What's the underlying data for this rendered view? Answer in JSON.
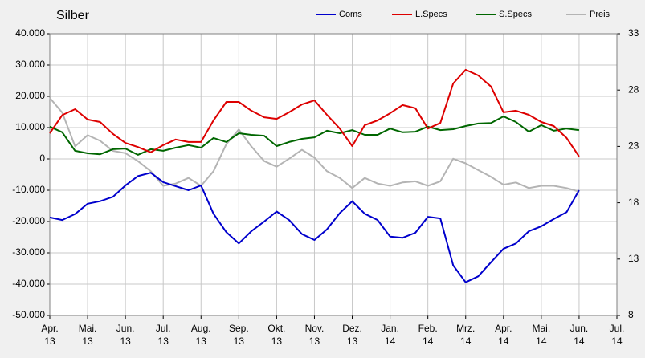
{
  "chart_data": {
    "type": "line",
    "title": "Silber",
    "x": [
      0,
      0.33,
      0.67,
      1,
      1.33,
      1.67,
      2,
      2.33,
      2.67,
      3,
      3.33,
      3.67,
      4,
      4.33,
      4.67,
      5,
      5.33,
      5.67,
      6,
      6.33,
      6.67,
      7,
      7.33,
      7.67,
      8,
      8.33,
      8.67,
      9,
      9.33,
      9.67,
      10,
      10.33,
      10.67,
      11,
      11.33,
      11.67,
      12,
      12.33,
      12.67,
      13,
      13.33,
      13.67,
      14
    ],
    "xlim": [
      0,
      15
    ],
    "xticks": [
      {
        "value": 0,
        "label": "Apr.",
        "sublabel": "13"
      },
      {
        "value": 1,
        "label": "Mai.",
        "sublabel": "13"
      },
      {
        "value": 2,
        "label": "Jun.",
        "sublabel": "13"
      },
      {
        "value": 3,
        "label": "Jul.",
        "sublabel": "13"
      },
      {
        "value": 4,
        "label": "Aug.",
        "sublabel": "13"
      },
      {
        "value": 5,
        "label": "Sep.",
        "sublabel": "13"
      },
      {
        "value": 6,
        "label": "Okt.",
        "sublabel": "13"
      },
      {
        "value": 7,
        "label": "Nov.",
        "sublabel": "13"
      },
      {
        "value": 8,
        "label": "Dez.",
        "sublabel": "13"
      },
      {
        "value": 9,
        "label": "Jan.",
        "sublabel": "14"
      },
      {
        "value": 10,
        "label": "Feb.",
        "sublabel": "14"
      },
      {
        "value": 11,
        "label": "Mrz.",
        "sublabel": "14"
      },
      {
        "value": 12,
        "label": "Apr.",
        "sublabel": "14"
      },
      {
        "value": 13,
        "label": "Mai.",
        "sublabel": "14"
      },
      {
        "value": 14,
        "label": "Jun.",
        "sublabel": "14"
      },
      {
        "value": 15,
        "label": "Jul.",
        "sublabel": "14"
      }
    ],
    "ylim": [
      -50000,
      40000
    ],
    "yticks": [
      {
        "value": 40000,
        "label": "40.000"
      },
      {
        "value": 30000,
        "label": "30.000"
      },
      {
        "value": 20000,
        "label": "20.000"
      },
      {
        "value": 10000,
        "label": "10.000"
      },
      0,
      {
        "value": -10000,
        "label": "-10.000"
      },
      {
        "value": -20000,
        "label": "-20.000"
      },
      {
        "value": -30000,
        "label": "-30.000"
      },
      {
        "value": -40000,
        "label": "-40.000"
      },
      {
        "value": -50000,
        "label": "-50.000"
      }
    ],
    "y2lim": [
      8,
      33
    ],
    "y2ticks": [
      33,
      28,
      23,
      18,
      13,
      8
    ],
    "grid": true,
    "legend": "top",
    "series": [
      {
        "name": "Coms",
        "color": "#0000cc",
        "values": [
          -18700,
          -19500,
          -17600,
          -14300,
          -13500,
          -12100,
          -8500,
          -5500,
          -4400,
          -7400,
          -8700,
          -10000,
          -8500,
          -17500,
          -23400,
          -27000,
          -23100,
          -20000,
          -16800,
          -19500,
          -24000,
          -25900,
          -22500,
          -17300,
          -13500,
          -17500,
          -19500,
          -24800,
          -25200,
          -23600,
          -18500,
          -19000,
          -34000,
          -39400,
          -37500,
          -33000,
          -28700,
          -27000,
          -23100,
          -21500,
          -19200,
          -17000,
          -10000
        ]
      },
      {
        "name": "L.Specs",
        "color": "#dd0000",
        "values": [
          8200,
          14000,
          15900,
          12600,
          11800,
          8000,
          5100,
          3800,
          2100,
          4400,
          6200,
          5400,
          5400,
          12300,
          18200,
          18200,
          15400,
          13300,
          12800,
          14900,
          17400,
          18700,
          14100,
          9700,
          4100,
          10800,
          12300,
          14600,
          17200,
          16200,
          9700,
          11500,
          24100,
          28500,
          26700,
          23100,
          14900,
          15400,
          14100,
          11800,
          10500,
          6700,
          800
        ]
      },
      {
        "name": "S.Specs",
        "color": "#006600",
        "values": [
          10300,
          8500,
          2600,
          1800,
          1500,
          3100,
          3300,
          1300,
          3100,
          2600,
          3600,
          4400,
          3600,
          6700,
          5400,
          8200,
          7700,
          7400,
          4100,
          5400,
          6400,
          6900,
          9000,
          8200,
          9200,
          7700,
          7700,
          9700,
          8500,
          8700,
          10300,
          9200,
          9500,
          10500,
          11300,
          11500,
          13600,
          11800,
          8700,
          10800,
          9000,
          9700,
          9200
        ]
      },
      {
        "name": "Preis",
        "color": "#b4b4b4",
        "axis": "y2",
        "values": [
          27.3,
          26.0,
          23.0,
          24.0,
          23.5,
          22.6,
          22.4,
          21.7,
          20.8,
          19.5,
          19.7,
          20.2,
          19.5,
          20.8,
          23.2,
          24.5,
          23.0,
          21.7,
          21.2,
          21.9,
          22.7,
          22.0,
          20.8,
          20.2,
          19.3,
          20.2,
          19.7,
          19.5,
          19.8,
          19.9,
          19.5,
          19.9,
          21.9,
          21.5,
          20.9,
          20.3,
          19.6,
          19.8,
          19.3,
          19.5,
          19.5,
          19.3,
          19.0
        ]
      }
    ]
  }
}
